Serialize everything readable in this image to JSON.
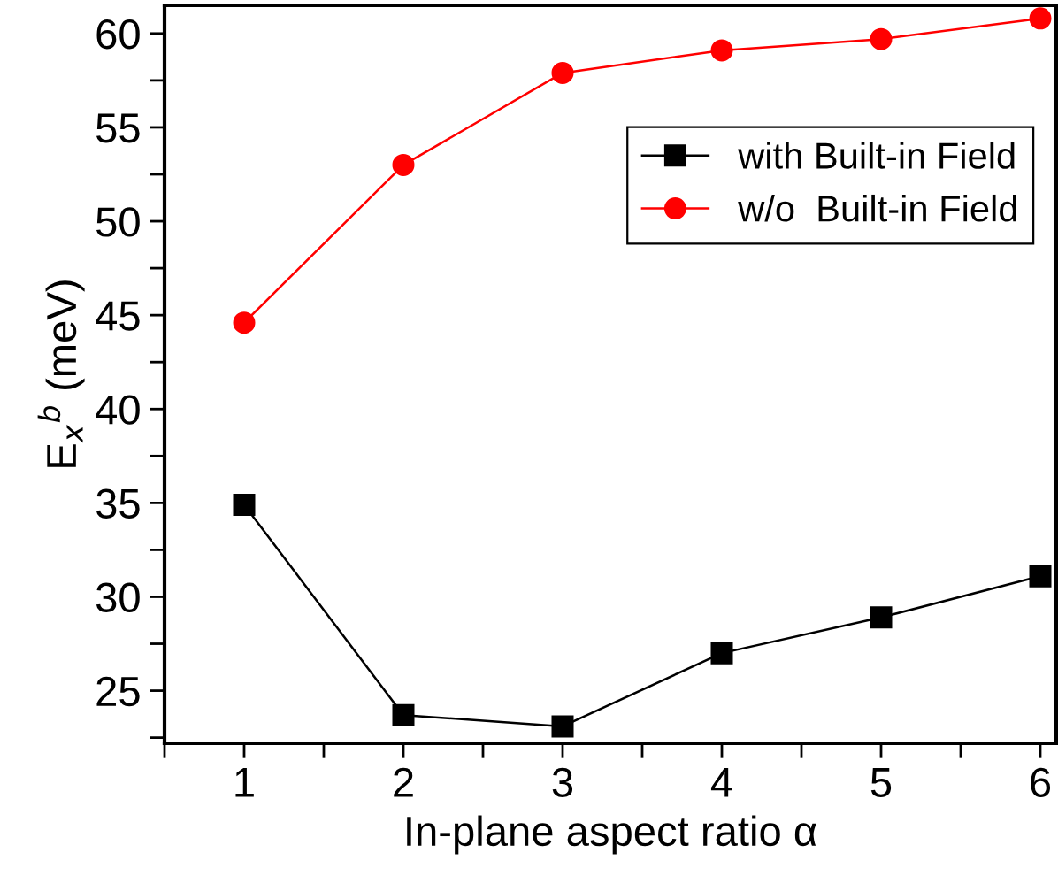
{
  "chart_data": {
    "type": "line",
    "xlabel": "In-plane aspect ratio α",
    "ylabel": "E$_{x}$$^{b}$ (meV)",
    "x": [
      1,
      2,
      3,
      4,
      5,
      6
    ],
    "series": [
      {
        "name": "with Built-in Field",
        "color": "#000000",
        "marker": "square",
        "values": [
          34.9,
          23.7,
          23.1,
          27.0,
          28.9,
          31.1
        ]
      },
      {
        "name": "w/o  Built-in Field",
        "color": "#ff0000",
        "marker": "circle",
        "values": [
          44.6,
          53.0,
          57.9,
          59.1,
          59.7,
          60.8
        ]
      }
    ],
    "xlim": [
      0.5,
      6.1
    ],
    "ylim": [
      22.2,
      61.5
    ],
    "xticks": [
      {
        "value": 0.5,
        "label": null
      },
      1,
      {
        "value": 1.5,
        "label": null
      },
      2,
      {
        "value": 2.5,
        "label": null
      },
      3,
      {
        "value": 3.5,
        "label": null
      },
      4,
      {
        "value": 4.5,
        "label": null
      },
      5,
      {
        "value": 5.5,
        "label": null
      },
      6
    ],
    "yticks": [
      {
        "value": 22.5,
        "label": null
      },
      25,
      {
        "value": 27.5,
        "label": null
      },
      30,
      {
        "value": 32.5,
        "label": null
      },
      35,
      {
        "value": 37.5,
        "label": null
      },
      40,
      {
        "value": 42.5,
        "label": null
      },
      45,
      {
        "value": 47.5,
        "label": null
      },
      50,
      {
        "value": 52.5,
        "label": null
      },
      55,
      {
        "value": 57.5,
        "label": null
      },
      60
    ],
    "grid": false,
    "legend": "top right",
    "line_style": "solid"
  }
}
